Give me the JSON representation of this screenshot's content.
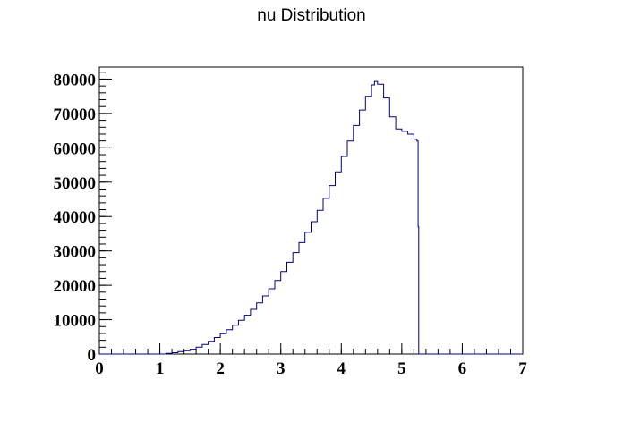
{
  "chart_data": {
    "type": "histogram",
    "title": "nu Distribution",
    "xlabel": "",
    "ylabel": "",
    "xlim": [
      0,
      7
    ],
    "ylim": [
      0,
      83500
    ],
    "xticks": [
      0,
      1,
      2,
      3,
      4,
      5,
      6,
      7
    ],
    "yticks": [
      0,
      10000,
      20000,
      30000,
      40000,
      50000,
      60000,
      70000,
      80000
    ],
    "x_minor_step": 0.2,
    "y_minor_step": 2000,
    "grid": false,
    "legend": "none",
    "series": [
      {
        "color": "#000080",
        "points": [
          [
            0.0,
            0
          ],
          [
            1.0,
            0
          ],
          [
            1.1,
            200
          ],
          [
            1.2,
            400
          ],
          [
            1.3,
            700
          ],
          [
            1.4,
            1000
          ],
          [
            1.5,
            1400
          ],
          [
            1.6,
            2000
          ],
          [
            1.7,
            2800
          ],
          [
            1.8,
            3700
          ],
          [
            1.9,
            4800
          ],
          [
            2.0,
            5900
          ],
          [
            2.1,
            7100
          ],
          [
            2.2,
            8400
          ],
          [
            2.3,
            9800
          ],
          [
            2.4,
            11300
          ],
          [
            2.5,
            13000
          ],
          [
            2.6,
            14900
          ],
          [
            2.7,
            16900
          ],
          [
            2.8,
            19000
          ],
          [
            2.9,
            21400
          ],
          [
            3.0,
            24000
          ],
          [
            3.1,
            26700
          ],
          [
            3.2,
            29500
          ],
          [
            3.3,
            32400
          ],
          [
            3.4,
            35400
          ],
          [
            3.5,
            38500
          ],
          [
            3.6,
            41800
          ],
          [
            3.7,
            45300
          ],
          [
            3.8,
            49000
          ],
          [
            3.9,
            53000
          ],
          [
            4.0,
            57500
          ],
          [
            4.1,
            62000
          ],
          [
            4.2,
            66500
          ],
          [
            4.3,
            71000
          ],
          [
            4.4,
            75000
          ],
          [
            4.5,
            78300
          ],
          [
            4.55,
            79300
          ],
          [
            4.6,
            78500
          ],
          [
            4.7,
            74500
          ],
          [
            4.8,
            69000
          ],
          [
            4.9,
            65500
          ],
          [
            5.0,
            64800
          ],
          [
            5.1,
            64000
          ],
          [
            5.2,
            62500
          ],
          [
            5.25,
            62000
          ],
          [
            5.27,
            37000
          ],
          [
            5.28,
            0
          ],
          [
            7.0,
            0
          ]
        ]
      }
    ]
  }
}
